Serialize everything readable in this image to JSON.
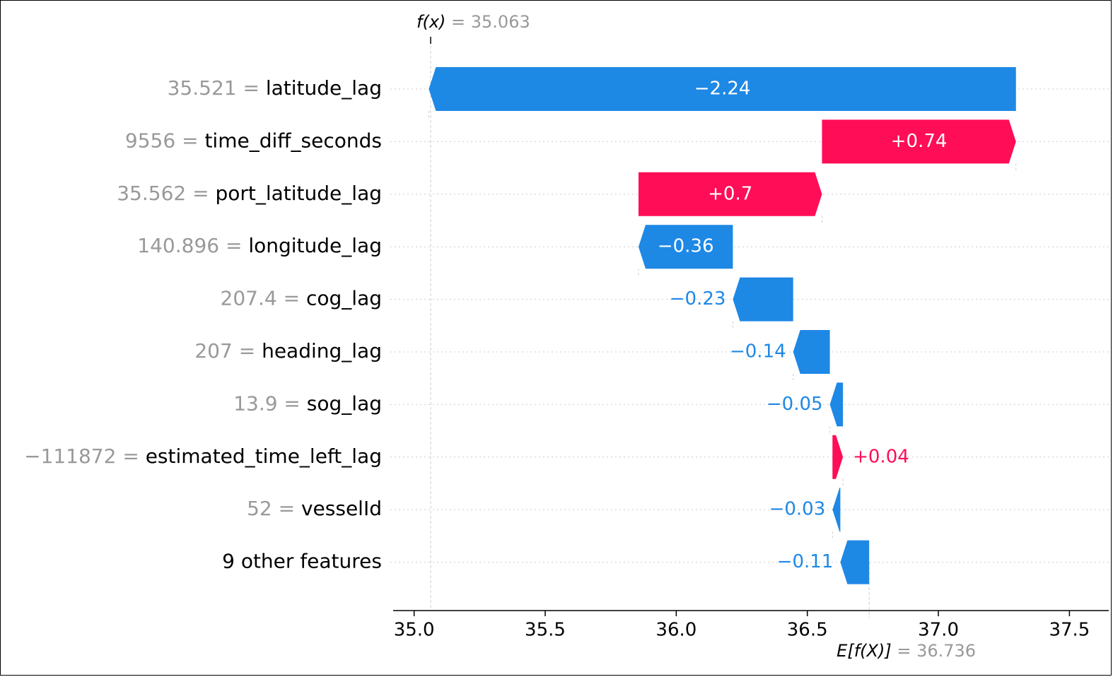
{
  "chart_data": {
    "type": "waterfall",
    "top_label": {
      "prefix": "f(x)",
      "equals": "=",
      "value": "35.063"
    },
    "bottom_label": {
      "prefix": "E[f(X)]",
      "equals": "=",
      "value": "36.736"
    },
    "fx": 35.063,
    "base_value": 36.736,
    "xlim": [
      34.92,
      37.65
    ],
    "xticks": [
      {
        "value": 35.0,
        "label": "35.0"
      },
      {
        "value": 35.5,
        "label": "35.5"
      },
      {
        "value": 36.0,
        "label": "36.0"
      },
      {
        "value": 36.5,
        "label": "36.5"
      },
      {
        "value": 37.0,
        "label": "37.0"
      },
      {
        "value": 37.5,
        "label": "37.5"
      }
    ],
    "features": [
      {
        "value_text": "35.521",
        "equals": "=",
        "name": "latitude_lag",
        "shap": -2.24,
        "shap_label": "−2.24"
      },
      {
        "value_text": "9556",
        "equals": "=",
        "name": "time_diff_seconds",
        "shap": 0.74,
        "shap_label": "+0.74"
      },
      {
        "value_text": "35.562",
        "equals": "=",
        "name": "port_latitude_lag",
        "shap": 0.7,
        "shap_label": "+0.7"
      },
      {
        "value_text": "140.896",
        "equals": "=",
        "name": "longitude_lag",
        "shap": -0.36,
        "shap_label": "−0.36"
      },
      {
        "value_text": "207.4",
        "equals": "=",
        "name": "cog_lag",
        "shap": -0.23,
        "shap_label": "−0.23"
      },
      {
        "value_text": "207",
        "equals": "=",
        "name": "heading_lag",
        "shap": -0.14,
        "shap_label": "−0.14"
      },
      {
        "value_text": "13.9",
        "equals": "=",
        "name": "sog_lag",
        "shap": -0.05,
        "shap_label": "−0.05"
      },
      {
        "value_text": "−111872",
        "equals": "=",
        "name": "estimated_time_left_lag",
        "shap": 0.04,
        "shap_label": "+0.04"
      },
      {
        "value_text": "52",
        "equals": "=",
        "name": "vesselId",
        "shap": -0.03,
        "shap_label": "−0.03"
      },
      {
        "value_text": "",
        "equals": "",
        "name": "9 other features",
        "shap": -0.11,
        "shap_label": "−0.11"
      }
    ],
    "colors": {
      "positive": "#ff0d57",
      "negative": "#1e88e5",
      "muted": "#999999",
      "text": "#000000"
    }
  }
}
